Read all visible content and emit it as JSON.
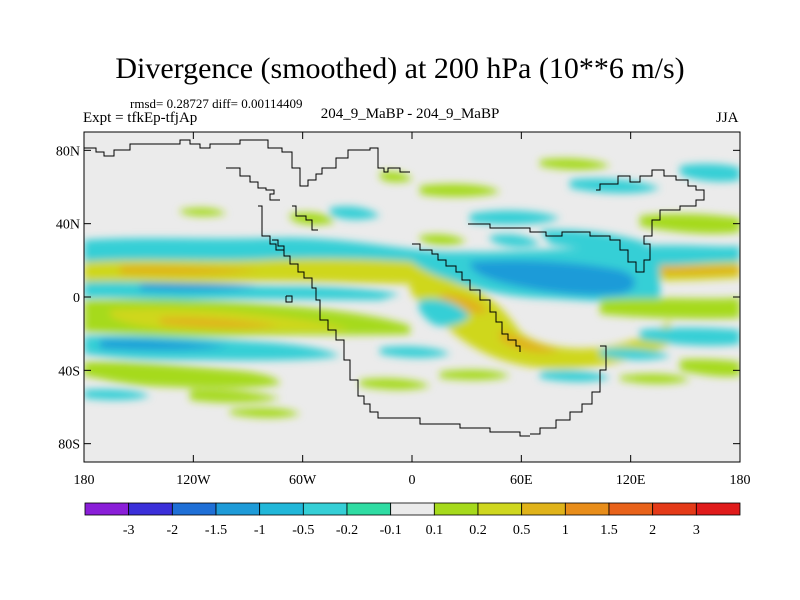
{
  "title": "Divergence (smoothed) at 200 hPa (10**6 m/s)",
  "stats": "rmsd= 0.28727 diff= 0.00114409",
  "experiment": "Expt = tfkEp-tfjAp",
  "center_label": "204_9_MaBP - 204_9_MaBP",
  "season": "JJA",
  "y_ticks": [
    "80N",
    "40N",
    "0",
    "40S",
    "80S"
  ],
  "x_ticks": [
    "180",
    "120W",
    "60W",
    "0",
    "60E",
    "120E",
    "180"
  ],
  "colorbar": {
    "labels": [
      "-3",
      "-2",
      "-1.5",
      "-1",
      "-0.5",
      "-0.2",
      "-0.1",
      "0.1",
      "0.2",
      "0.5",
      "1",
      "1.5",
      "2",
      "3"
    ],
    "colors": [
      "#8a1ed8",
      "#3b2fd9",
      "#1f6fd6",
      "#1e9bd8",
      "#21b7d9",
      "#35cfd6",
      "#2fdca3",
      "#ebebeb",
      "#a6da1c",
      "#cfd71f",
      "#e0b31a",
      "#e88d1a",
      "#e8621a",
      "#e43a18",
      "#e01b1b"
    ]
  },
  "chart_data": {
    "type": "heatmap",
    "title": "Divergence (smoothed) at 200 hPa (10**6 m/s)",
    "xlim": [
      -180,
      180
    ],
    "ylim": [
      -90,
      90
    ],
    "x_ticks": [
      -180,
      -120,
      -60,
      0,
      60,
      120,
      180
    ],
    "y_ticks": [
      80,
      40,
      0,
      -40,
      -80
    ],
    "levels": [
      -3,
      -2,
      -1.5,
      -1,
      -0.5,
      -0.2,
      -0.1,
      0.1,
      0.2,
      0.5,
      1,
      1.5,
      2,
      3
    ],
    "features": [
      {
        "lon": [
          -180,
          180
        ],
        "lat": [
          16,
          24
        ],
        "value": 0.5
      },
      {
        "lon": [
          -180,
          -90
        ],
        "lat": [
          28,
          34
        ],
        "value": -0.3
      },
      {
        "lon": [
          -180,
          -30
        ],
        "lat": [
          5,
          12
        ],
        "value": -0.3
      },
      {
        "lon": [
          -180,
          -40
        ],
        "lat": [
          -8,
          -2
        ],
        "value": 0.3
      },
      {
        "lon": [
          -160,
          -40
        ],
        "lat": [
          -20,
          -12
        ],
        "value": 0.6
      },
      {
        "lon": [
          -180,
          -100
        ],
        "lat": [
          -32,
          -24
        ],
        "value": -0.3
      },
      {
        "lon": [
          -140,
          -60
        ],
        "lat": [
          -48,
          -40
        ],
        "value": 0.3
      },
      {
        "lon": [
          0,
          100
        ],
        "lat": [
          20,
          40
        ],
        "value": -0.4
      },
      {
        "lon": [
          40,
          120
        ],
        "lat": [
          0,
          20
        ],
        "value": -0.5
      },
      {
        "lon": [
          10,
          60
        ],
        "lat": [
          -12,
          -2
        ],
        "value": 0.8
      },
      {
        "lon": [
          60,
          120
        ],
        "lat": [
          -30,
          -18
        ],
        "value": 0.5
      },
      {
        "lon": [
          100,
          180
        ],
        "lat": [
          -50,
          -40
        ],
        "value": -0.2
      }
    ]
  }
}
